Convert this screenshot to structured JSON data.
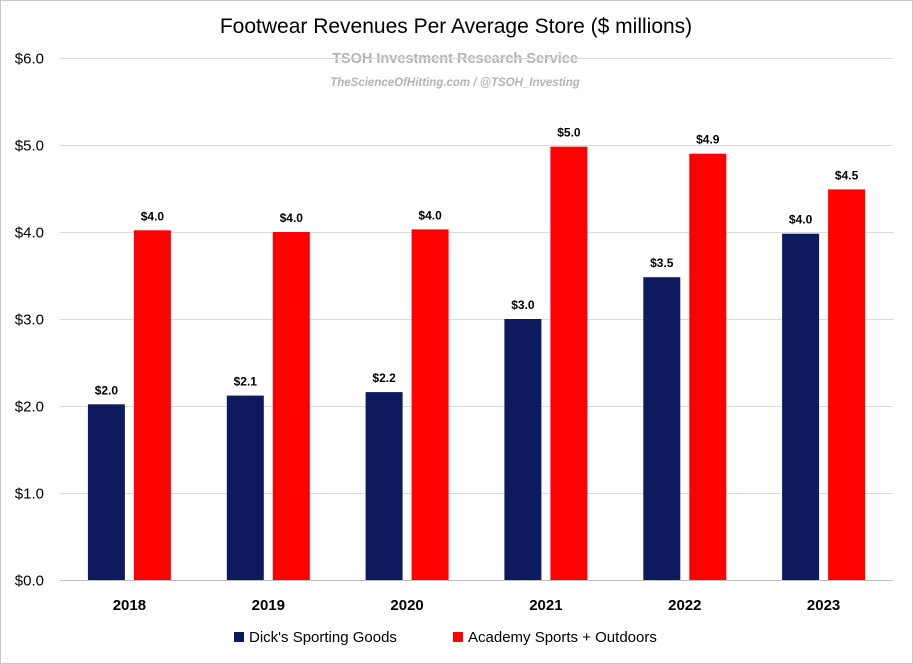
{
  "chart_data": {
    "type": "bar",
    "title": "Footwear Revenues Per Average Store ($ millions)",
    "watermark": {
      "line1": "TSOH Investment Research Service",
      "line2": "TheScienceOfHitting.com / @TSOH_Investing"
    },
    "categories": [
      "2018",
      "2019",
      "2020",
      "2021",
      "2022",
      "2023"
    ],
    "series": [
      {
        "name": "Dick's Sporting Goods",
        "color": "#0d1b5e",
        "values": [
          2.02,
          2.12,
          2.16,
          3.0,
          3.48,
          3.98
        ],
        "labels": [
          "$2.0",
          "$2.1",
          "$2.2",
          "$3.0",
          "$3.5",
          "$4.0"
        ]
      },
      {
        "name": "Academy Sports + Outdoors",
        "color": "#ff0000",
        "values": [
          4.02,
          4.0,
          4.03,
          4.98,
          4.9,
          4.49
        ],
        "labels": [
          "$4.0",
          "$4.0",
          "$4.0",
          "$5.0",
          "$4.9",
          "$4.5"
        ]
      }
    ],
    "ylim": [
      0,
      6
    ],
    "yticks": [
      0,
      1,
      2,
      3,
      4,
      5,
      6
    ],
    "ytick_labels": [
      "$0.0",
      "$1.0",
      "$2.0",
      "$3.0",
      "$4.0",
      "$5.0",
      "$6.0"
    ],
    "grid": true,
    "legend_position": "bottom"
  }
}
